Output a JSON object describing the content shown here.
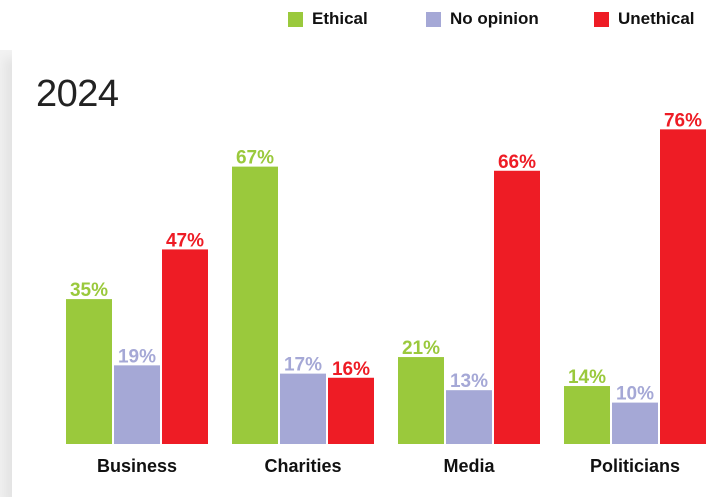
{
  "year_label": "2024",
  "colors": {
    "ethical": "#9ac93c",
    "no_opinion": "#a5a8d6",
    "unethical": "#ee1c25"
  },
  "legend": [
    {
      "label": "Ethical",
      "color": "#9ac93c"
    },
    {
      "label": "No opinion",
      "color": "#a5a8d6"
    },
    {
      "label": "Unethical",
      "color": "#ee1c25"
    }
  ],
  "chart_data": {
    "type": "bar",
    "title": "",
    "categories": [
      "Business",
      "Charities",
      "Media",
      "Politicians"
    ],
    "series": [
      {
        "name": "Ethical",
        "color": "#9ac93c",
        "values": [
          35,
          67,
          21,
          14
        ]
      },
      {
        "name": "No opinion",
        "color": "#a5a8d6",
        "values": [
          19,
          17,
          13,
          10
        ]
      },
      {
        "name": "Unethical",
        "color": "#ee1c25",
        "values": [
          47,
          16,
          66,
          76
        ]
      }
    ],
    "value_suffix": "%",
    "ylim": [
      0,
      100
    ],
    "legend_position": "top-right",
    "grid": false
  }
}
